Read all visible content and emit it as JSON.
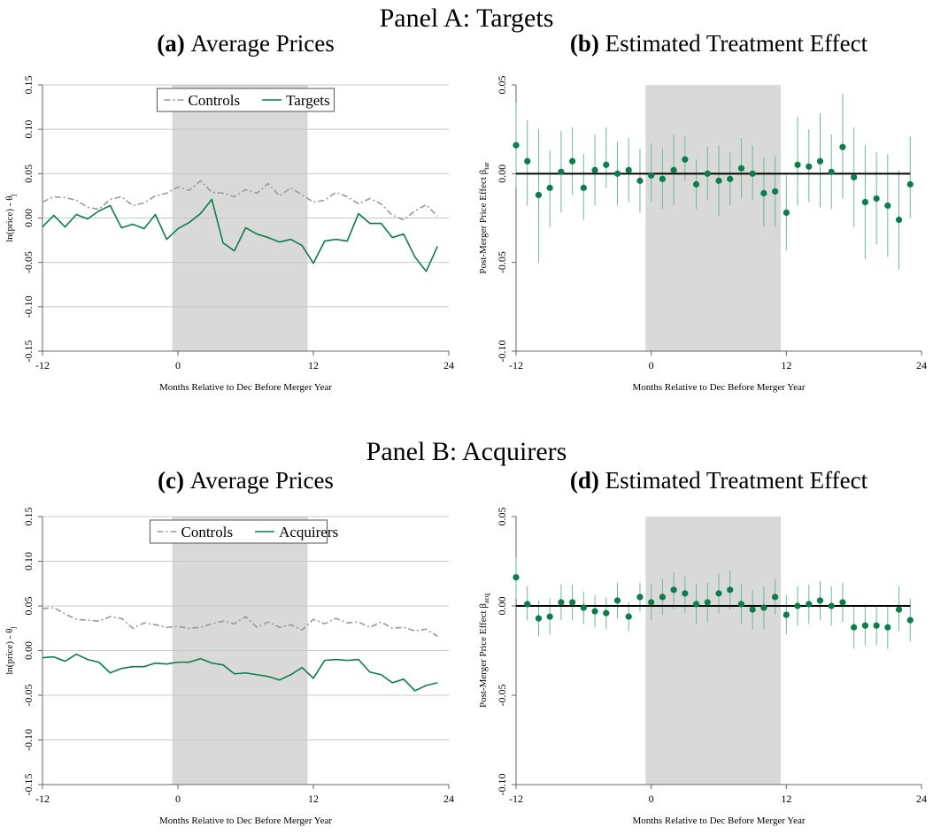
{
  "panels": [
    {
      "title": "Panel A: Targets"
    },
    {
      "title": "Panel B: Acquirers"
    }
  ],
  "chart_data": [
    {
      "id": "a",
      "type": "line",
      "label_letter": "(a)",
      "title": "Average Prices",
      "xlabel": "Months Relative to Dec Before Merger Year",
      "ylabel": "ln(price) - θ",
      "ylabel_sub": "j",
      "xlim": [
        -12,
        24
      ],
      "ylim": [
        -0.15,
        0.15
      ],
      "xticks": [
        "-12",
        "0",
        "12",
        "24"
      ],
      "yticks": [
        "-0.15",
        "-0.10",
        "-0.05",
        "0.00",
        "0.05",
        "0.10",
        "0.15"
      ],
      "shaded_region": [
        -0.5,
        11.5
      ],
      "legend_position": "top-center",
      "series": [
        {
          "name": "Controls",
          "color": "#999999",
          "dash": "dashdot",
          "x": [
            -12,
            -11,
            -10,
            -9,
            -8,
            -7,
            -6,
            -5,
            -4,
            -3,
            -2,
            -1,
            0,
            1,
            2,
            3,
            4,
            5,
            6,
            7,
            8,
            9,
            10,
            11,
            12,
            13,
            14,
            15,
            16,
            17,
            18,
            19,
            20,
            21,
            22,
            23
          ],
          "values": [
            0.018,
            0.024,
            0.023,
            0.02,
            0.012,
            0.01,
            0.021,
            0.024,
            0.014,
            0.017,
            0.025,
            0.028,
            0.035,
            0.031,
            0.042,
            0.029,
            0.028,
            0.024,
            0.032,
            0.028,
            0.039,
            0.025,
            0.034,
            0.026,
            0.018,
            0.02,
            0.029,
            0.024,
            0.016,
            0.022,
            0.016,
            0.003,
            -0.002,
            0.008,
            0.015,
            0.002
          ]
        },
        {
          "name": "Targets",
          "color": "#0a7d4b",
          "dash": "solid",
          "x": [
            -12,
            -11,
            -10,
            -9,
            -8,
            -7,
            -6,
            -5,
            -4,
            -3,
            -2,
            -1,
            0,
            1,
            2,
            3,
            4,
            5,
            6,
            7,
            8,
            9,
            10,
            11,
            12,
            13,
            14,
            15,
            16,
            17,
            18,
            19,
            20,
            21,
            22,
            23
          ],
          "values": [
            -0.01,
            0.003,
            -0.01,
            0.004,
            -0.001,
            0.008,
            0.014,
            -0.011,
            -0.007,
            -0.012,
            0.004,
            -0.024,
            -0.012,
            -0.005,
            0.005,
            0.021,
            -0.028,
            -0.037,
            -0.011,
            -0.018,
            -0.022,
            -0.027,
            -0.024,
            -0.031,
            -0.051,
            -0.026,
            -0.024,
            -0.026,
            0.005,
            -0.006,
            -0.006,
            -0.022,
            -0.018,
            -0.044,
            -0.06,
            -0.032
          ]
        }
      ]
    },
    {
      "id": "b",
      "type": "scatter",
      "label_letter": "(b)",
      "title": "Estimated Treatment Effect",
      "xlabel": "Months Relative to Dec Before Merger Year",
      "ylabel": "Post-Merger Price Effect β",
      "ylabel_sub": "tar",
      "xlim": [
        -12,
        24
      ],
      "ylim": [
        -0.1,
        0.05
      ],
      "xticks": [
        "-12",
        "0",
        "12",
        "24"
      ],
      "yticks": [
        "-0.10",
        "-0.05",
        "0.00",
        "0.05"
      ],
      "shaded_region": [
        -0.5,
        11.5
      ],
      "reference_line": 0,
      "color": "#0a7d4b",
      "x": [
        -12,
        -11,
        -10,
        -9,
        -8,
        -7,
        -6,
        -5,
        -4,
        -3,
        -2,
        -1,
        0,
        1,
        2,
        3,
        4,
        5,
        6,
        7,
        8,
        9,
        10,
        11,
        12,
        13,
        14,
        15,
        16,
        17,
        18,
        19,
        20,
        21,
        22,
        23
      ],
      "values": [
        0.016,
        0.007,
        -0.012,
        -0.008,
        0.001,
        0.007,
        -0.008,
        0.002,
        0.005,
        0.0,
        0.002,
        -0.004,
        -0.001,
        -0.003,
        0.002,
        0.008,
        -0.006,
        0.0,
        -0.004,
        -0.003,
        0.003,
        0.0,
        -0.011,
        -0.01,
        -0.022,
        0.005,
        0.004,
        0.007,
        0.001,
        0.015,
        -0.002,
        -0.016,
        -0.014,
        -0.018,
        -0.026,
        -0.006
      ],
      "ci_low": [
        -0.008,
        -0.018,
        -0.05,
        -0.03,
        -0.022,
        -0.012,
        -0.026,
        -0.018,
        -0.008,
        -0.018,
        -0.016,
        -0.022,
        -0.016,
        -0.02,
        -0.018,
        -0.004,
        -0.02,
        -0.015,
        -0.024,
        -0.018,
        -0.014,
        -0.015,
        -0.03,
        -0.03,
        -0.043,
        -0.018,
        -0.016,
        -0.019,
        -0.02,
        -0.014,
        -0.03,
        -0.048,
        -0.04,
        -0.047,
        -0.054,
        -0.025
      ],
      "ci_high": [
        0.04,
        0.03,
        0.025,
        0.013,
        0.024,
        0.026,
        0.011,
        0.022,
        0.026,
        0.018,
        0.02,
        0.014,
        0.017,
        0.014,
        0.022,
        0.021,
        0.008,
        0.015,
        0.016,
        0.012,
        0.02,
        0.016,
        0.009,
        0.01,
        -0.001,
        0.032,
        0.025,
        0.034,
        0.022,
        0.045,
        0.026,
        0.016,
        0.012,
        0.011,
        0.002,
        0.021
      ]
    },
    {
      "id": "c",
      "type": "line",
      "label_letter": "(c)",
      "title": "Average Prices",
      "xlabel": "Months Relative to Dec Before Merger Year",
      "ylabel": "ln(price) - θ",
      "ylabel_sub": "j",
      "xlim": [
        -12,
        24
      ],
      "ylim": [
        -0.15,
        0.15
      ],
      "xticks": [
        "-12",
        "0",
        "12",
        "24"
      ],
      "yticks": [
        "-0.15",
        "-0.10",
        "-0.05",
        "0.00",
        "0.05",
        "0.10",
        "0.15"
      ],
      "shaded_region": [
        -0.5,
        11.5
      ],
      "legend_position": "top-center",
      "series": [
        {
          "name": "Controls",
          "color": "#999999",
          "dash": "dashdot",
          "x": [
            -12,
            -11,
            -10,
            -9,
            -8,
            -7,
            -6,
            -5,
            -4,
            -3,
            -2,
            -1,
            0,
            1,
            2,
            3,
            4,
            5,
            6,
            7,
            8,
            9,
            10,
            11,
            12,
            13,
            14,
            15,
            16,
            17,
            18,
            19,
            20,
            21,
            22,
            23
          ],
          "values": [
            0.047,
            0.048,
            0.041,
            0.035,
            0.034,
            0.033,
            0.038,
            0.036,
            0.025,
            0.031,
            0.029,
            0.026,
            0.027,
            0.025,
            0.026,
            0.03,
            0.033,
            0.03,
            0.038,
            0.026,
            0.032,
            0.026,
            0.029,
            0.023,
            0.035,
            0.03,
            0.036,
            0.031,
            0.032,
            0.026,
            0.032,
            0.025,
            0.026,
            0.022,
            0.024,
            0.016
          ]
        },
        {
          "name": "Acquirers",
          "color": "#0a7d4b",
          "dash": "solid",
          "x": [
            -12,
            -11,
            -10,
            -9,
            -8,
            -7,
            -6,
            -5,
            -4,
            -3,
            -2,
            -1,
            0,
            1,
            2,
            3,
            4,
            5,
            6,
            7,
            8,
            9,
            10,
            11,
            12,
            13,
            14,
            15,
            16,
            17,
            18,
            19,
            20,
            21,
            22,
            23
          ],
          "values": [
            -0.008,
            -0.007,
            -0.012,
            -0.004,
            -0.01,
            -0.013,
            -0.025,
            -0.02,
            -0.018,
            -0.018,
            -0.014,
            -0.015,
            -0.013,
            -0.013,
            -0.009,
            -0.014,
            -0.016,
            -0.026,
            -0.025,
            -0.027,
            -0.029,
            -0.033,
            -0.027,
            -0.019,
            -0.031,
            -0.011,
            -0.01,
            -0.011,
            -0.01,
            -0.024,
            -0.027,
            -0.036,
            -0.032,
            -0.045,
            -0.039,
            -0.036
          ]
        }
      ]
    },
    {
      "id": "d",
      "type": "scatter",
      "label_letter": "(d)",
      "title": "Estimated Treatment Effect",
      "xlabel": "Months Relative to Dec Before Merger Year",
      "ylabel": "Post-Merger Price Effect β",
      "ylabel_sub": "acq",
      "xlim": [
        -12,
        24
      ],
      "ylim": [
        -0.1,
        0.05
      ],
      "xticks": [
        "-12",
        "0",
        "12",
        "24"
      ],
      "yticks": [
        "-0.10",
        "-0.05",
        "0.00",
        "0.05"
      ],
      "shaded_region": [
        -0.5,
        11.5
      ],
      "reference_line": 0,
      "color": "#0a7d4b",
      "x": [
        -12,
        -11,
        -10,
        -9,
        -8,
        -7,
        -6,
        -5,
        -4,
        -3,
        -2,
        -1,
        0,
        1,
        2,
        3,
        4,
        5,
        6,
        7,
        8,
        9,
        10,
        11,
        12,
        13,
        14,
        15,
        16,
        17,
        18,
        19,
        20,
        21,
        22,
        23
      ],
      "values": [
        0.016,
        0.001,
        -0.007,
        -0.006,
        0.002,
        0.002,
        -0.001,
        -0.003,
        -0.004,
        0.003,
        -0.006,
        0.005,
        0.002,
        0.005,
        0.009,
        0.007,
        0.001,
        0.002,
        0.007,
        0.009,
        0.001,
        -0.002,
        -0.001,
        0.005,
        -0.005,
        0.0,
        0.001,
        0.003,
        0.0,
        0.002,
        -0.012,
        -0.011,
        -0.011,
        -0.012,
        -0.002,
        -0.008
      ],
      "ci_low": [
        0.004,
        -0.008,
        -0.017,
        -0.016,
        -0.008,
        -0.008,
        -0.01,
        -0.012,
        -0.013,
        -0.007,
        -0.014,
        -0.003,
        -0.008,
        -0.005,
        -0.002,
        -0.004,
        -0.01,
        -0.009,
        -0.004,
        -0.002,
        -0.01,
        -0.013,
        -0.013,
        -0.005,
        -0.016,
        -0.011,
        -0.01,
        -0.008,
        -0.011,
        -0.009,
        -0.024,
        -0.022,
        -0.022,
        -0.024,
        -0.014,
        -0.02
      ],
      "ci_high": [
        0.027,
        0.011,
        0.003,
        0.004,
        0.012,
        0.012,
        0.008,
        0.006,
        0.005,
        0.013,
        0.002,
        0.013,
        0.012,
        0.015,
        0.019,
        0.017,
        0.012,
        0.013,
        0.018,
        0.02,
        0.012,
        0.009,
        0.011,
        0.015,
        0.006,
        0.011,
        0.012,
        0.014,
        0.011,
        0.013,
        0.0,
        0.0,
        0.0,
        0.0,
        0.011,
        0.004
      ]
    }
  ]
}
